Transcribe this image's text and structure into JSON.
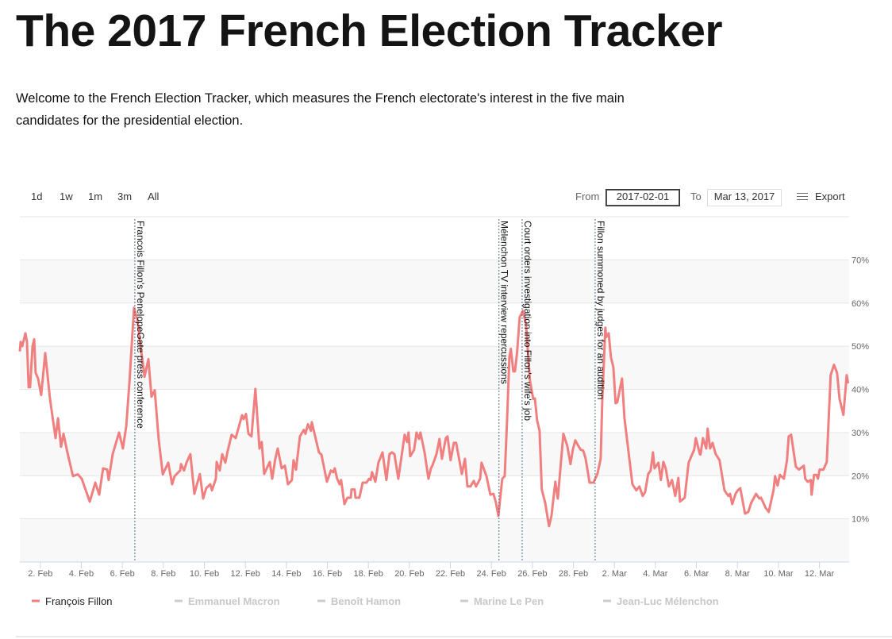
{
  "header": {
    "title": "The 2017 French Election Tracker",
    "intro": "Welcome to the French Election Tracker, which measures the French electorate's interest in the five main candidates for the presidential election."
  },
  "controls": {
    "range_buttons": [
      "1d",
      "1w",
      "1m",
      "3m",
      "All"
    ],
    "from_label": "From",
    "from_value": "2017-02-01",
    "to_label": "To",
    "to_value": "Mar 13, 2017",
    "export_label": "Export",
    "export_icon": "hamburger-menu-icon"
  },
  "colors": {
    "fillon": "#f07f7f",
    "inactive": "#cccccc",
    "annotation_line": "#5a6a85"
  },
  "chart_data": {
    "type": "line",
    "title": "The 2017 French Election Tracker",
    "x_unit": "days since 2017-02-01",
    "xlim": [
      0,
      40.45
    ],
    "ylim": [
      0,
      80
    ],
    "y_ticks": [
      10,
      20,
      30,
      40,
      50,
      60,
      70
    ],
    "y_tick_labels": [
      "10%",
      "20%",
      "30%",
      "40%",
      "50%",
      "60%",
      "70%"
    ],
    "x_ticks": [
      1,
      3,
      5,
      7,
      9,
      11,
      13,
      15,
      17,
      19,
      21,
      23,
      25,
      27,
      29,
      31,
      33,
      35,
      37,
      39
    ],
    "x_tick_labels": [
      "2. Feb",
      "4. Feb",
      "6. Feb",
      "8. Feb",
      "10. Feb",
      "12. Feb",
      "14. Feb",
      "16. Feb",
      "18. Feb",
      "20. Feb",
      "22. Feb",
      "24. Feb",
      "26. Feb",
      "28. Feb",
      "2. Mar",
      "4. Mar",
      "6. Mar",
      "8. Mar",
      "10. Mar",
      "12. Mar"
    ],
    "grid": true,
    "legend_position": "bottom-left",
    "legend": [
      "François Fillon",
      "Emmanuel Macron",
      "Benoît Hamon",
      "Marine Le Pen",
      "Jean-Luc Mélenchon"
    ],
    "legend_active": [
      true,
      false,
      false,
      false,
      false
    ],
    "annotations": [
      {
        "x": 5.61,
        "text": "Francois Fillon's PenelopeGate press conference"
      },
      {
        "x": 23.37,
        "text": "Mélenchon TV interview repercussions"
      },
      {
        "x": 24.5,
        "text": "Court orders investigation into Fillon's wife's job"
      },
      {
        "x": 28.06,
        "text": "Fillon summoned by judges for an audition"
      }
    ],
    "series": [
      {
        "name": "François Fillon",
        "points": [
          [
            0,
            48.8
          ],
          [
            0.04,
            51
          ],
          [
            0.12,
            50
          ],
          [
            0.27,
            53
          ],
          [
            0.35,
            51
          ],
          [
            0.43,
            40.5
          ],
          [
            0.5,
            40.5
          ],
          [
            0.62,
            50
          ],
          [
            0.7,
            51.6
          ],
          [
            0.77,
            43.8
          ],
          [
            0.89,
            42.5
          ],
          [
            1.04,
            38.7
          ],
          [
            1.24,
            48.4
          ],
          [
            1.35,
            43.3
          ],
          [
            1.47,
            37.8
          ],
          [
            1.74,
            28.7
          ],
          [
            1.86,
            33.3
          ],
          [
            2.01,
            26.7
          ],
          [
            2.13,
            29.7
          ],
          [
            2.32,
            25.4
          ],
          [
            2.59,
            19.9
          ],
          [
            2.83,
            20.3
          ],
          [
            3.02,
            19.3
          ],
          [
            3.41,
            14
          ],
          [
            3.68,
            18.4
          ],
          [
            3.87,
            15.6
          ],
          [
            4.06,
            21.7
          ],
          [
            4.26,
            21.4
          ],
          [
            4.33,
            19
          ],
          [
            4.53,
            25
          ],
          [
            4.84,
            30
          ],
          [
            5.03,
            26.3
          ],
          [
            5.19,
            31.5
          ],
          [
            5.34,
            41.4
          ],
          [
            5.57,
            58.9
          ],
          [
            5.73,
            56.2
          ],
          [
            6.08,
            42.9
          ],
          [
            6.27,
            47
          ],
          [
            6.42,
            38.3
          ],
          [
            6.58,
            39.8
          ],
          [
            6.77,
            28.5
          ],
          [
            6.97,
            20.3
          ],
          [
            7.24,
            23
          ],
          [
            7.43,
            18
          ],
          [
            7.55,
            19.9
          ],
          [
            7.82,
            21.2
          ],
          [
            7.86,
            22.7
          ],
          [
            8.01,
            21.2
          ],
          [
            8.13,
            23
          ],
          [
            8.32,
            25
          ],
          [
            8.51,
            15.8
          ],
          [
            8.78,
            20.4
          ],
          [
            8.94,
            14.7
          ],
          [
            9.09,
            17.1
          ],
          [
            9.29,
            18
          ],
          [
            9.37,
            16.6
          ],
          [
            9.56,
            19.3
          ],
          [
            9.6,
            23.2
          ],
          [
            9.75,
            21.2
          ],
          [
            9.87,
            25
          ],
          [
            10.02,
            23
          ],
          [
            10.14,
            25.8
          ],
          [
            10.33,
            29.5
          ],
          [
            10.53,
            28.7
          ],
          [
            10.84,
            34
          ],
          [
            10.91,
            33.1
          ],
          [
            11.03,
            34.3
          ],
          [
            11.15,
            29.7
          ],
          [
            11.3,
            29.1
          ],
          [
            11.49,
            40.1
          ],
          [
            11.69,
            26.3
          ],
          [
            11.8,
            27.8
          ],
          [
            11.92,
            20.4
          ],
          [
            12.19,
            23.2
          ],
          [
            12.31,
            19.3
          ],
          [
            12.46,
            23.9
          ],
          [
            12.58,
            26.3
          ],
          [
            12.77,
            21.7
          ],
          [
            12.93,
            22.3
          ],
          [
            13.08,
            18
          ],
          [
            13.27,
            19
          ],
          [
            13.35,
            23.6
          ],
          [
            13.47,
            21.4
          ],
          [
            13.66,
            29.1
          ],
          [
            13.85,
            30.6
          ],
          [
            13.93,
            29.7
          ],
          [
            14.05,
            31.9
          ],
          [
            14.2,
            30.4
          ],
          [
            14.24,
            32.4
          ],
          [
            14.59,
            25.4
          ],
          [
            14.71,
            24.9
          ],
          [
            14.98,
            18.6
          ],
          [
            15.17,
            21.2
          ],
          [
            15.29,
            20.8
          ],
          [
            15.36,
            21.7
          ],
          [
            15.48,
            19.3
          ],
          [
            15.6,
            18
          ],
          [
            15.67,
            19
          ],
          [
            15.83,
            13.4
          ],
          [
            15.98,
            14.9
          ],
          [
            16.14,
            14.9
          ],
          [
            16.18,
            16.8
          ],
          [
            16.33,
            16.8
          ],
          [
            16.37,
            14.9
          ],
          [
            16.56,
            14.9
          ],
          [
            16.72,
            18.4
          ],
          [
            16.91,
            18.4
          ],
          [
            17.03,
            19.3
          ],
          [
            17.11,
            19
          ],
          [
            17.18,
            20.8
          ],
          [
            17.34,
            18.6
          ],
          [
            17.49,
            23
          ],
          [
            17.69,
            25.4
          ],
          [
            17.88,
            19
          ],
          [
            18.03,
            25
          ],
          [
            18.15,
            25.4
          ],
          [
            18.27,
            25
          ],
          [
            18.46,
            19.3
          ],
          [
            18.77,
            29.5
          ],
          [
            18.89,
            27.8
          ],
          [
            18.96,
            30
          ],
          [
            19.04,
            24.5
          ],
          [
            19.23,
            26
          ],
          [
            19.35,
            30
          ],
          [
            19.47,
            28.5
          ],
          [
            19.54,
            30
          ],
          [
            19.74,
            25.4
          ],
          [
            19.93,
            19.3
          ],
          [
            20.05,
            21.7
          ],
          [
            20.12,
            22.3
          ],
          [
            20.32,
            25
          ],
          [
            20.47,
            28.5
          ],
          [
            20.59,
            23.9
          ],
          [
            20.78,
            28.7
          ],
          [
            20.86,
            29.1
          ],
          [
            21.01,
            23.6
          ],
          [
            21.17,
            27.6
          ],
          [
            21.28,
            27.6
          ],
          [
            21.56,
            20.4
          ],
          [
            21.71,
            23.9
          ],
          [
            21.83,
            17.5
          ],
          [
            21.98,
            17.5
          ],
          [
            22.14,
            18.8
          ],
          [
            22.25,
            17.5
          ],
          [
            22.45,
            19.3
          ],
          [
            22.52,
            23
          ],
          [
            22.76,
            19.9
          ],
          [
            22.95,
            15.6
          ],
          [
            23.1,
            15.8
          ],
          [
            23.22,
            13.8
          ],
          [
            23.34,
            10.7
          ],
          [
            23.53,
            19.3
          ],
          [
            23.65,
            19.9
          ],
          [
            23.76,
            32.2
          ],
          [
            23.88,
            47.5
          ],
          [
            23.95,
            49.4
          ],
          [
            24.07,
            44.2
          ],
          [
            24.15,
            44.2
          ],
          [
            24.26,
            48.8
          ],
          [
            24.38,
            56.7
          ],
          [
            24.54,
            58.2
          ],
          [
            24.69,
            54.9
          ],
          [
            24.88,
            42
          ],
          [
            25.04,
            37.8
          ],
          [
            25.12,
            37.9
          ],
          [
            25.23,
            32.8
          ],
          [
            25.35,
            30.4
          ],
          [
            25.46,
            16.8
          ],
          [
            25.62,
            13.8
          ],
          [
            25.81,
            8.3
          ],
          [
            25.93,
            10.7
          ],
          [
            26.12,
            18.6
          ],
          [
            26.24,
            14.7
          ],
          [
            26.51,
            29.7
          ],
          [
            26.7,
            26.9
          ],
          [
            26.86,
            22.7
          ],
          [
            26.97,
            26
          ],
          [
            27.09,
            28.2
          ],
          [
            27.24,
            26.9
          ],
          [
            27.36,
            26
          ],
          [
            27.48,
            25.8
          ],
          [
            27.59,
            24.1
          ],
          [
            27.79,
            18.4
          ],
          [
            27.98,
            18.4
          ],
          [
            28.17,
            20.4
          ],
          [
            28.33,
            23.9
          ],
          [
            28.41,
            37.8
          ],
          [
            28.56,
            54.3
          ],
          [
            28.6,
            52.1
          ],
          [
            28.72,
            53
          ],
          [
            28.83,
            47.5
          ],
          [
            28.95,
            45.1
          ],
          [
            29.06,
            36.8
          ],
          [
            29.14,
            37
          ],
          [
            29.37,
            42.5
          ],
          [
            29.49,
            33.3
          ],
          [
            29.88,
            18
          ],
          [
            30.07,
            16.6
          ],
          [
            30.22,
            17.5
          ],
          [
            30.38,
            15.3
          ],
          [
            30.5,
            16.2
          ],
          [
            30.65,
            20.4
          ],
          [
            30.77,
            21.2
          ],
          [
            30.88,
            25.4
          ],
          [
            30.96,
            21.7
          ],
          [
            31.15,
            23
          ],
          [
            31.27,
            19
          ],
          [
            31.39,
            23.2
          ],
          [
            31.5,
            21.7
          ],
          [
            31.66,
            17.5
          ],
          [
            31.81,
            19
          ],
          [
            31.97,
            15.3
          ],
          [
            32.12,
            19.5
          ],
          [
            32.2,
            14
          ],
          [
            32.43,
            14.9
          ],
          [
            32.62,
            23
          ],
          [
            32.89,
            26
          ],
          [
            32.97,
            28.7
          ],
          [
            33.17,
            25
          ],
          [
            33.2,
            24.9
          ],
          [
            33.32,
            28.7
          ],
          [
            33.48,
            26.3
          ],
          [
            33.55,
            30.9
          ],
          [
            33.67,
            26.3
          ],
          [
            33.79,
            27.6
          ],
          [
            33.94,
            25
          ],
          [
            34.13,
            23.6
          ],
          [
            34.37,
            16.6
          ],
          [
            34.56,
            15.3
          ],
          [
            34.64,
            15.8
          ],
          [
            34.75,
            13.4
          ],
          [
            34.91,
            15.8
          ],
          [
            35.02,
            16.6
          ],
          [
            35.14,
            17.1
          ],
          [
            35.37,
            11.2
          ],
          [
            35.53,
            11.6
          ],
          [
            35.68,
            13.8
          ],
          [
            35.91,
            15.8
          ],
          [
            36.07,
            14.7
          ],
          [
            36.15,
            14.9
          ],
          [
            36.38,
            12.5
          ],
          [
            36.53,
            11.6
          ],
          [
            36.76,
            16.6
          ],
          [
            36.84,
            19.9
          ],
          [
            36.96,
            17.7
          ],
          [
            37.07,
            20.2
          ],
          [
            37.27,
            19.3
          ],
          [
            37.42,
            23.6
          ],
          [
            37.5,
            29.1
          ],
          [
            37.62,
            29.5
          ],
          [
            37.85,
            22.1
          ],
          [
            38.0,
            21.4
          ],
          [
            38.24,
            22.3
          ],
          [
            38.31,
            19.3
          ],
          [
            38.43,
            18.6
          ],
          [
            38.58,
            19
          ],
          [
            38.62,
            15.6
          ],
          [
            38.74,
            20.2
          ],
          [
            38.85,
            20.2
          ],
          [
            38.93,
            19.3
          ],
          [
            39.01,
            21.4
          ],
          [
            39.2,
            21.4
          ],
          [
            39.36,
            23.2
          ],
          [
            39.55,
            43.3
          ],
          [
            39.71,
            45.7
          ],
          [
            39.86,
            43.8
          ],
          [
            39.98,
            37.8
          ],
          [
            40.17,
            34.1
          ],
          [
            40.33,
            43.3
          ],
          [
            40.4,
            41.4
          ]
        ]
      }
    ]
  }
}
